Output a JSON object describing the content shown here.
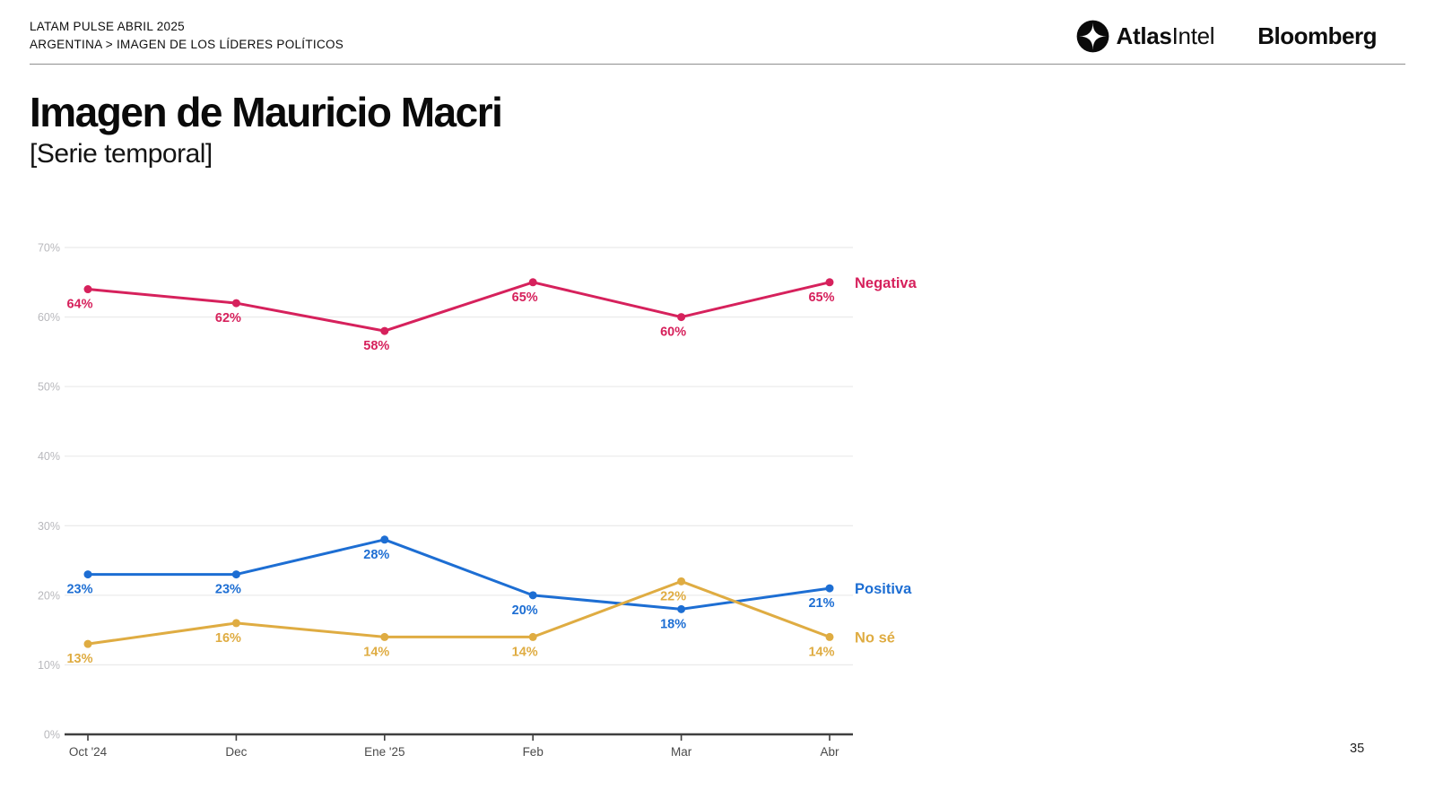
{
  "header": {
    "line1": "LATAM PULSE ABRIL 2025",
    "line2": "ARGENTINA > IMAGEN DE LOS LÍDERES POLÍTICOS"
  },
  "logos": {
    "atlasintel_bold": "Atlas",
    "atlasintel_regular": "Intel",
    "bloomberg": "Bloomberg"
  },
  "title": "Imagen de Mauricio Macri",
  "subtitle": "[Serie temporal]",
  "page_number": "35",
  "chart_data": {
    "type": "line",
    "title": "Imagen de Mauricio Macri [Serie temporal]",
    "categories": [
      "Oct '24",
      "Dec",
      "Ene '25",
      "Feb",
      "Mar",
      "Abr"
    ],
    "xlabel": "",
    "ylabel": "",
    "ylim": [
      0,
      70
    ],
    "y_ticks": [
      0,
      10,
      20,
      30,
      40,
      50,
      60,
      70
    ],
    "y_tick_suffix": "%",
    "grid": true,
    "legend_position": "right-of-line-end",
    "label_format": "value + %",
    "series": [
      {
        "name": "Negativa",
        "color": "#D6215C",
        "values": [
          64,
          62,
          58,
          65,
          60,
          65
        ]
      },
      {
        "name": "Positiva",
        "color": "#1D6ED3",
        "values": [
          23,
          23,
          28,
          20,
          18,
          21
        ]
      },
      {
        "name": "No sé",
        "color": "#DFAC42",
        "values": [
          13,
          16,
          14,
          14,
          22,
          14
        ]
      }
    ]
  },
  "colors": {
    "gridline": "#ebebeb",
    "y_tick_label": "#b8b8bc",
    "x_tick_label": "#4a4a4a",
    "axis": "#3f3f3f"
  }
}
